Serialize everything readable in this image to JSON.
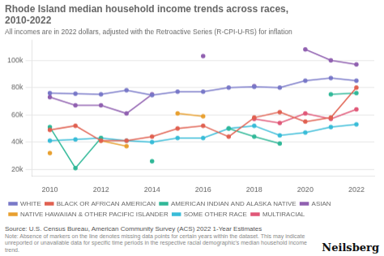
{
  "chart_data": {
    "type": "line",
    "title": "Rhode Island median household income trends across races,\n2010-2022",
    "subtitle": "All incomes are in 2022 dollars, adjusted with the Retroactive Series (R-CPI-U-RS) for inflation",
    "annotations": [
      "Source: U.S. Census Bureau, American Community Survey (ACS) 2022 1-Year Estimates",
      "Note: Absence of markers on the line denotes missing data points for certain years within the dataset. This may indicate unreported or unavailable data for specific time periods in the respective racial demographic's median household income trend.",
      "Neilsberg"
    ],
    "x": [
      2010,
      2011,
      2012,
      2013,
      2014,
      2015,
      2016,
      2017,
      2018,
      2019,
      2020,
      2021,
      2022
    ],
    "series": [
      {
        "name": "WHITE",
        "color": "#7878c8",
        "values": [
          76000,
          75500,
          75000,
          78000,
          74500,
          77000,
          77000,
          80000,
          80500,
          80000,
          85000,
          87000,
          85000
        ]
      },
      {
        "name": "BLACK OR AFRICAN AMERICAN",
        "color": "#e06050",
        "values": [
          49000,
          52000,
          41000,
          41000,
          44000,
          50000,
          52000,
          44000,
          58000,
          62000,
          55000,
          58000,
          80000
        ]
      },
      {
        "name": "AMERICAN INDIAN AND ALASKA NATIVE",
        "color": "#30b898",
        "values": [
          51000,
          21000,
          43000,
          null,
          26000,
          null,
          null,
          50000,
          44000,
          39000,
          null,
          75000,
          76000
        ]
      },
      {
        "name": "ASIAN",
        "color": "#9060b0",
        "values": [
          73000,
          67000,
          67000,
          61000,
          75000,
          null,
          103000,
          null,
          81000,
          null,
          108000,
          100000,
          97000
        ]
      },
      {
        "name": "NATIVE HAWAIIAN & OTHER PACIFIC ISLANDER",
        "color": "#e8a030",
        "values": [
          32000,
          null,
          41000,
          37000,
          null,
          61000,
          59000,
          null,
          null,
          null,
          null,
          null,
          null
        ]
      },
      {
        "name": "SOME OTHER RACE",
        "color": "#38bcd8",
        "values": [
          41000,
          42000,
          43000,
          41000,
          40000,
          43000,
          43000,
          50000,
          52000,
          45000,
          47000,
          51000,
          53000
        ]
      },
      {
        "name": "MULTIRACIAL",
        "color": "#e05878",
        "values": [
          null,
          null,
          null,
          null,
          null,
          null,
          null,
          null,
          57000,
          54000,
          61000,
          57000,
          64000
        ]
      }
    ],
    "xlim": [
      2009.3,
      2022.7
    ],
    "xticks": [
      2010,
      2012,
      2014,
      2016,
      2018,
      2020,
      2022
    ],
    "ylim": [
      15000,
      115000
    ],
    "yticks": [
      {
        "value": 20000,
        "label": "20k"
      },
      {
        "value": 40000,
        "label": "40k"
      },
      {
        "value": 60000,
        "label": "60k"
      },
      {
        "value": 80000,
        "label": "80k"
      },
      {
        "value": 100000,
        "label": "100k"
      }
    ],
    "grid": "y",
    "legend": "bottom",
    "marker": "circle"
  }
}
